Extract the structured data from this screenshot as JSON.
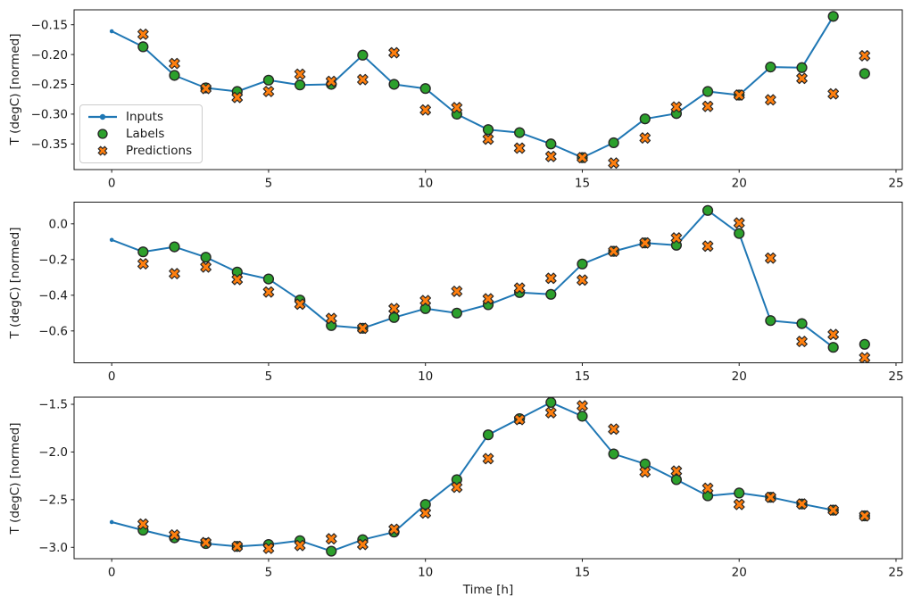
{
  "figure": {
    "xlabel": "Time [h]",
    "ylabel": "T (degC) [normed]",
    "colors": {
      "inputs_line": "#1f77b4",
      "labels_marker": "#2ca02c",
      "predictions_marker": "#ff7f0e",
      "marker_edge": "#262626",
      "axis": "#1a1a1a",
      "legend_border": "#cccccc"
    },
    "legend": {
      "items": [
        {
          "label": "Inputs",
          "type": "line-dot",
          "color": "#1f77b4"
        },
        {
          "label": "Labels",
          "type": "circle",
          "color": "#2ca02c"
        },
        {
          "label": "Predictions",
          "type": "x",
          "color": "#ff7f0e"
        }
      ]
    }
  },
  "chart_data": [
    {
      "type": "line",
      "title": "",
      "xlabel": "",
      "ylabel": "T (degC) [normed]",
      "xlim": [
        -1.2,
        25.2
      ],
      "ylim": [
        -0.393,
        -0.125
      ],
      "x_ticks": [
        0,
        5,
        10,
        15,
        20,
        25
      ],
      "x_tick_labels": [
        "0",
        "5",
        "10",
        "15",
        "20",
        "25"
      ],
      "y_ticks": [
        -0.15,
        -0.2,
        -0.25,
        -0.3,
        -0.35
      ],
      "y_tick_labels": [
        "−0.15",
        "−0.20",
        "−0.25",
        "−0.30",
        "−0.35"
      ],
      "legend_position": "upper left",
      "grid": false,
      "series": [
        {
          "name": "Inputs",
          "type": "line",
          "marker": "dot",
          "x": [
            0,
            1,
            2,
            3,
            4,
            5,
            6,
            7,
            8,
            9,
            10,
            11,
            12,
            13,
            14,
            15,
            16,
            17,
            18,
            19,
            20,
            21,
            22,
            23
          ],
          "y": [
            -0.161,
            -0.187,
            -0.235,
            -0.256,
            -0.262,
            -0.243,
            -0.251,
            -0.25,
            -0.201,
            -0.25,
            -0.257,
            -0.3,
            -0.326,
            -0.331,
            -0.35,
            -0.373,
            -0.348,
            -0.308,
            -0.299,
            -0.262,
            -0.268,
            -0.221,
            -0.222,
            -0.136
          ]
        },
        {
          "name": "Labels",
          "type": "scatter",
          "marker": "circle",
          "x": [
            1,
            2,
            3,
            4,
            5,
            6,
            7,
            8,
            9,
            10,
            11,
            12,
            13,
            14,
            15,
            16,
            17,
            18,
            19,
            20,
            21,
            22,
            23,
            24
          ],
          "y": [
            -0.187,
            -0.235,
            -0.256,
            -0.262,
            -0.243,
            -0.251,
            -0.25,
            -0.201,
            -0.25,
            -0.257,
            -0.3,
            -0.326,
            -0.331,
            -0.35,
            -0.373,
            -0.348,
            -0.308,
            -0.299,
            -0.262,
            -0.268,
            -0.221,
            -0.222,
            -0.136,
            -0.232
          ]
        },
        {
          "name": "Predictions",
          "type": "scatter",
          "marker": "X",
          "x": [
            1,
            2,
            3,
            4,
            5,
            6,
            7,
            8,
            9,
            10,
            11,
            12,
            13,
            14,
            15,
            16,
            17,
            18,
            19,
            20,
            21,
            22,
            23,
            24
          ],
          "y": [
            -0.166,
            -0.215,
            -0.257,
            -0.272,
            -0.262,
            -0.233,
            -0.245,
            -0.242,
            -0.197,
            -0.293,
            -0.289,
            -0.342,
            -0.357,
            -0.371,
            -0.373,
            -0.382,
            -0.34,
            -0.288,
            -0.287,
            -0.268,
            -0.276,
            -0.24,
            -0.266,
            -0.202
          ]
        }
      ]
    },
    {
      "type": "line",
      "title": "",
      "xlabel": "",
      "ylabel": "T (degC) [normed]",
      "xlim": [
        -1.2,
        25.2
      ],
      "ylim": [
        -0.7785,
        0.1215
      ],
      "x_ticks": [
        0,
        5,
        10,
        15,
        20,
        25
      ],
      "x_tick_labels": [
        "0",
        "5",
        "10",
        "15",
        "20",
        "25"
      ],
      "y_ticks": [
        0.0,
        -0.2,
        -0.4,
        -0.6
      ],
      "y_tick_labels": [
        "0.0",
        "−0.2",
        "−0.4",
        "−0.6"
      ],
      "legend_position": "none",
      "grid": false,
      "series": [
        {
          "name": "Inputs",
          "type": "line",
          "marker": "dot",
          "x": [
            0,
            1,
            2,
            3,
            4,
            5,
            6,
            7,
            8,
            9,
            10,
            11,
            12,
            13,
            14,
            15,
            16,
            17,
            18,
            19,
            20,
            21,
            22,
            23
          ],
          "y": [
            -0.09,
            -0.157,
            -0.129,
            -0.187,
            -0.27,
            -0.309,
            -0.427,
            -0.57,
            -0.585,
            -0.525,
            -0.475,
            -0.5,
            -0.453,
            -0.385,
            -0.395,
            -0.225,
            -0.154,
            -0.107,
            -0.12,
            0.075,
            -0.054,
            -0.542,
            -0.559,
            -0.692
          ]
        },
        {
          "name": "Labels",
          "type": "scatter",
          "marker": "circle",
          "x": [
            1,
            2,
            3,
            4,
            5,
            6,
            7,
            8,
            9,
            10,
            11,
            12,
            13,
            14,
            15,
            16,
            17,
            18,
            19,
            20,
            21,
            22,
            23,
            24
          ],
          "y": [
            -0.157,
            -0.129,
            -0.187,
            -0.27,
            -0.309,
            -0.427,
            -0.57,
            -0.585,
            -0.525,
            -0.475,
            -0.5,
            -0.453,
            -0.385,
            -0.395,
            -0.225,
            -0.154,
            -0.107,
            -0.12,
            0.075,
            -0.054,
            -0.542,
            -0.559,
            -0.692,
            -0.675
          ]
        },
        {
          "name": "Predictions",
          "type": "scatter",
          "marker": "X",
          "x": [
            1,
            2,
            3,
            4,
            5,
            6,
            7,
            8,
            9,
            10,
            11,
            12,
            13,
            14,
            15,
            16,
            17,
            18,
            19,
            20,
            21,
            22,
            23,
            24
          ],
          "y": [
            -0.224,
            -0.279,
            -0.242,
            -0.312,
            -0.382,
            -0.45,
            -0.53,
            -0.585,
            -0.475,
            -0.43,
            -0.378,
            -0.42,
            -0.36,
            -0.305,
            -0.315,
            -0.154,
            -0.107,
            -0.079,
            -0.125,
            0.005,
            -0.192,
            -0.659,
            -0.62,
            -0.75
          ]
        }
      ]
    },
    {
      "type": "line",
      "title": "",
      "xlabel": "Time [h]",
      "ylabel": "T (degC) [normed]",
      "xlim": [
        -1.2,
        25.2
      ],
      "ylim": [
        -3.119,
        -1.425
      ],
      "x_ticks": [
        0,
        5,
        10,
        15,
        20,
        25
      ],
      "x_tick_labels": [
        "0",
        "5",
        "10",
        "15",
        "20",
        "25"
      ],
      "y_ticks": [
        -1.5,
        -2.0,
        -2.5,
        -3.0
      ],
      "y_tick_labels": [
        "−1.5",
        "−2.0",
        "−2.5",
        "−3.0"
      ],
      "legend_position": "none",
      "grid": false,
      "series": [
        {
          "name": "Inputs",
          "type": "line",
          "marker": "dot",
          "x": [
            0,
            1,
            2,
            3,
            4,
            5,
            6,
            7,
            8,
            9,
            10,
            11,
            12,
            13,
            14,
            15,
            16,
            17,
            18,
            19,
            20,
            21,
            22,
            23
          ],
          "y": [
            -2.735,
            -2.82,
            -2.9,
            -2.96,
            -2.99,
            -2.97,
            -2.93,
            -3.04,
            -2.92,
            -2.84,
            -2.55,
            -2.29,
            -1.82,
            -1.65,
            -1.48,
            -1.625,
            -2.02,
            -2.125,
            -2.29,
            -2.46,
            -2.43,
            -2.475,
            -2.545,
            -2.61
          ]
        },
        {
          "name": "Labels",
          "type": "scatter",
          "marker": "circle",
          "x": [
            1,
            2,
            3,
            4,
            5,
            6,
            7,
            8,
            9,
            10,
            11,
            12,
            13,
            14,
            15,
            16,
            17,
            18,
            19,
            20,
            21,
            22,
            23,
            24
          ],
          "y": [
            -2.82,
            -2.9,
            -2.96,
            -2.99,
            -2.97,
            -2.93,
            -3.04,
            -2.92,
            -2.84,
            -2.55,
            -2.29,
            -1.82,
            -1.65,
            -1.48,
            -1.625,
            -2.02,
            -2.125,
            -2.29,
            -2.46,
            -2.43,
            -2.475,
            -2.545,
            -2.61,
            -2.67
          ]
        },
        {
          "name": "Predictions",
          "type": "scatter",
          "marker": "X",
          "x": [
            1,
            2,
            3,
            4,
            5,
            6,
            7,
            8,
            9,
            10,
            11,
            12,
            13,
            14,
            15,
            16,
            17,
            18,
            19,
            20,
            21,
            22,
            23,
            24
          ],
          "y": [
            -2.756,
            -2.87,
            -2.95,
            -2.99,
            -3.01,
            -2.98,
            -2.91,
            -2.97,
            -2.81,
            -2.64,
            -2.37,
            -2.07,
            -1.66,
            -1.588,
            -1.516,
            -1.76,
            -2.21,
            -2.2,
            -2.38,
            -2.55,
            -2.475,
            -2.545,
            -2.61,
            -2.67
          ]
        }
      ]
    }
  ]
}
